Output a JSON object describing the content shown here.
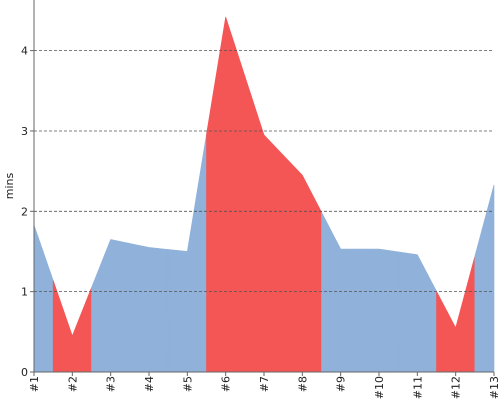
{
  "chart_data": {
    "type": "area",
    "title": "",
    "xlabel": "",
    "ylabel": "mins",
    "categories": [
      "#1",
      "#2",
      "#3",
      "#4",
      "#5",
      "#6",
      "#7",
      "#8",
      "#9",
      "#10",
      "#11",
      "#12",
      "#13"
    ],
    "values": [
      1.83,
      0.45,
      1.65,
      1.55,
      1.5,
      4.42,
      2.95,
      2.45,
      1.53,
      1.53,
      1.46,
      0.55,
      2.33
    ],
    "highlighted": [
      false,
      true,
      false,
      false,
      false,
      true,
      true,
      true,
      false,
      false,
      false,
      true,
      false
    ],
    "ylim": [
      0,
      4.63
    ],
    "yticks": [
      0,
      1,
      2,
      3,
      4
    ],
    "grid": true,
    "legend": "none",
    "colors": {
      "normal": "#8fb1da",
      "highlight": "#f45555"
    }
  }
}
